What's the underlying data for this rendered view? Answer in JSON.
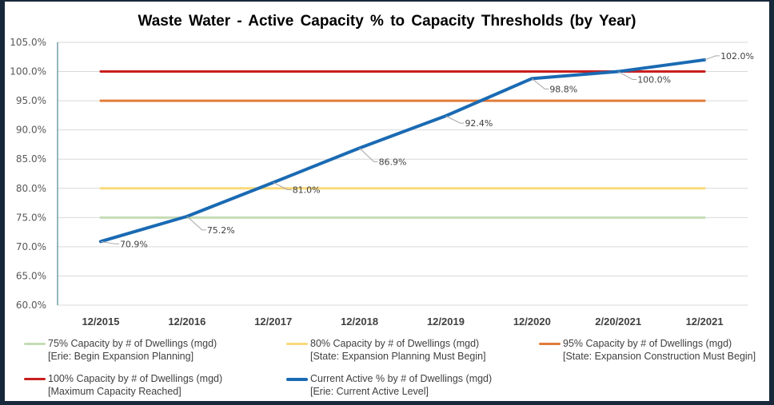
{
  "chart_data": {
    "type": "line",
    "title": "Waste Water - Active  Capacity % to Capacity Thresholds (by Year)",
    "xlabel": "",
    "ylabel": "",
    "categories": [
      "12/2015",
      "12/2016",
      "12/2017",
      "12/2018",
      "12/2019",
      "12/2020",
      "2/20/2021",
      "12/2021"
    ],
    "ylim": [
      60.0,
      105.0
    ],
    "y_ticks": [
      "60.0%",
      "65.0%",
      "70.0%",
      "75.0%",
      "80.0%",
      "85.0%",
      "90.0%",
      "95.0%",
      "100.0%",
      "105.0%"
    ],
    "y_tick_values": [
      60,
      65,
      70,
      75,
      80,
      85,
      90,
      95,
      100,
      105
    ],
    "grid": true,
    "legend_position": "bottom",
    "series": [
      {
        "name": "75% Capacity by # of Dwellings (mgd)",
        "subtitle": "[Erie: Begin Expansion Planning]",
        "color": "#c5dcb5",
        "values": [
          75,
          75,
          75,
          75,
          75,
          75,
          75,
          75
        ],
        "data_labels": null
      },
      {
        "name": "80% Capacity by # of Dwellings (mgd)",
        "subtitle": "[State: Expansion Planning Must Begin]",
        "color": "#f9d97a",
        "values": [
          80,
          80,
          80,
          80,
          80,
          80,
          80,
          80
        ],
        "data_labels": null
      },
      {
        "name": "95% Capacity by # of Dwellings (mgd)",
        "subtitle": "[State: Expansion Construction Must Begin]",
        "color": "#e07b39",
        "values": [
          95,
          95,
          95,
          95,
          95,
          95,
          95,
          95
        ],
        "data_labels": null
      },
      {
        "name": "100% Capacity by # of Dwellings (mgd)",
        "subtitle": "[Maximum Capacity Reached]",
        "color": "#c81e1e",
        "values": [
          100,
          100,
          100,
          100,
          100,
          100,
          100,
          100
        ],
        "data_labels": null
      },
      {
        "name": "Current Active % by # of Dwellings (mgd)",
        "subtitle": "[Erie: Current Active Level]",
        "color": "#1a6ab3",
        "values": [
          70.9,
          75.2,
          81.0,
          86.9,
          92.4,
          98.8,
          100.0,
          102.0
        ],
        "data_labels": [
          "70.9%",
          "75.2%",
          "81.0%",
          "86.9%",
          "92.4%",
          "98.8%",
          "100.0%",
          "102.0%"
        ]
      }
    ]
  }
}
